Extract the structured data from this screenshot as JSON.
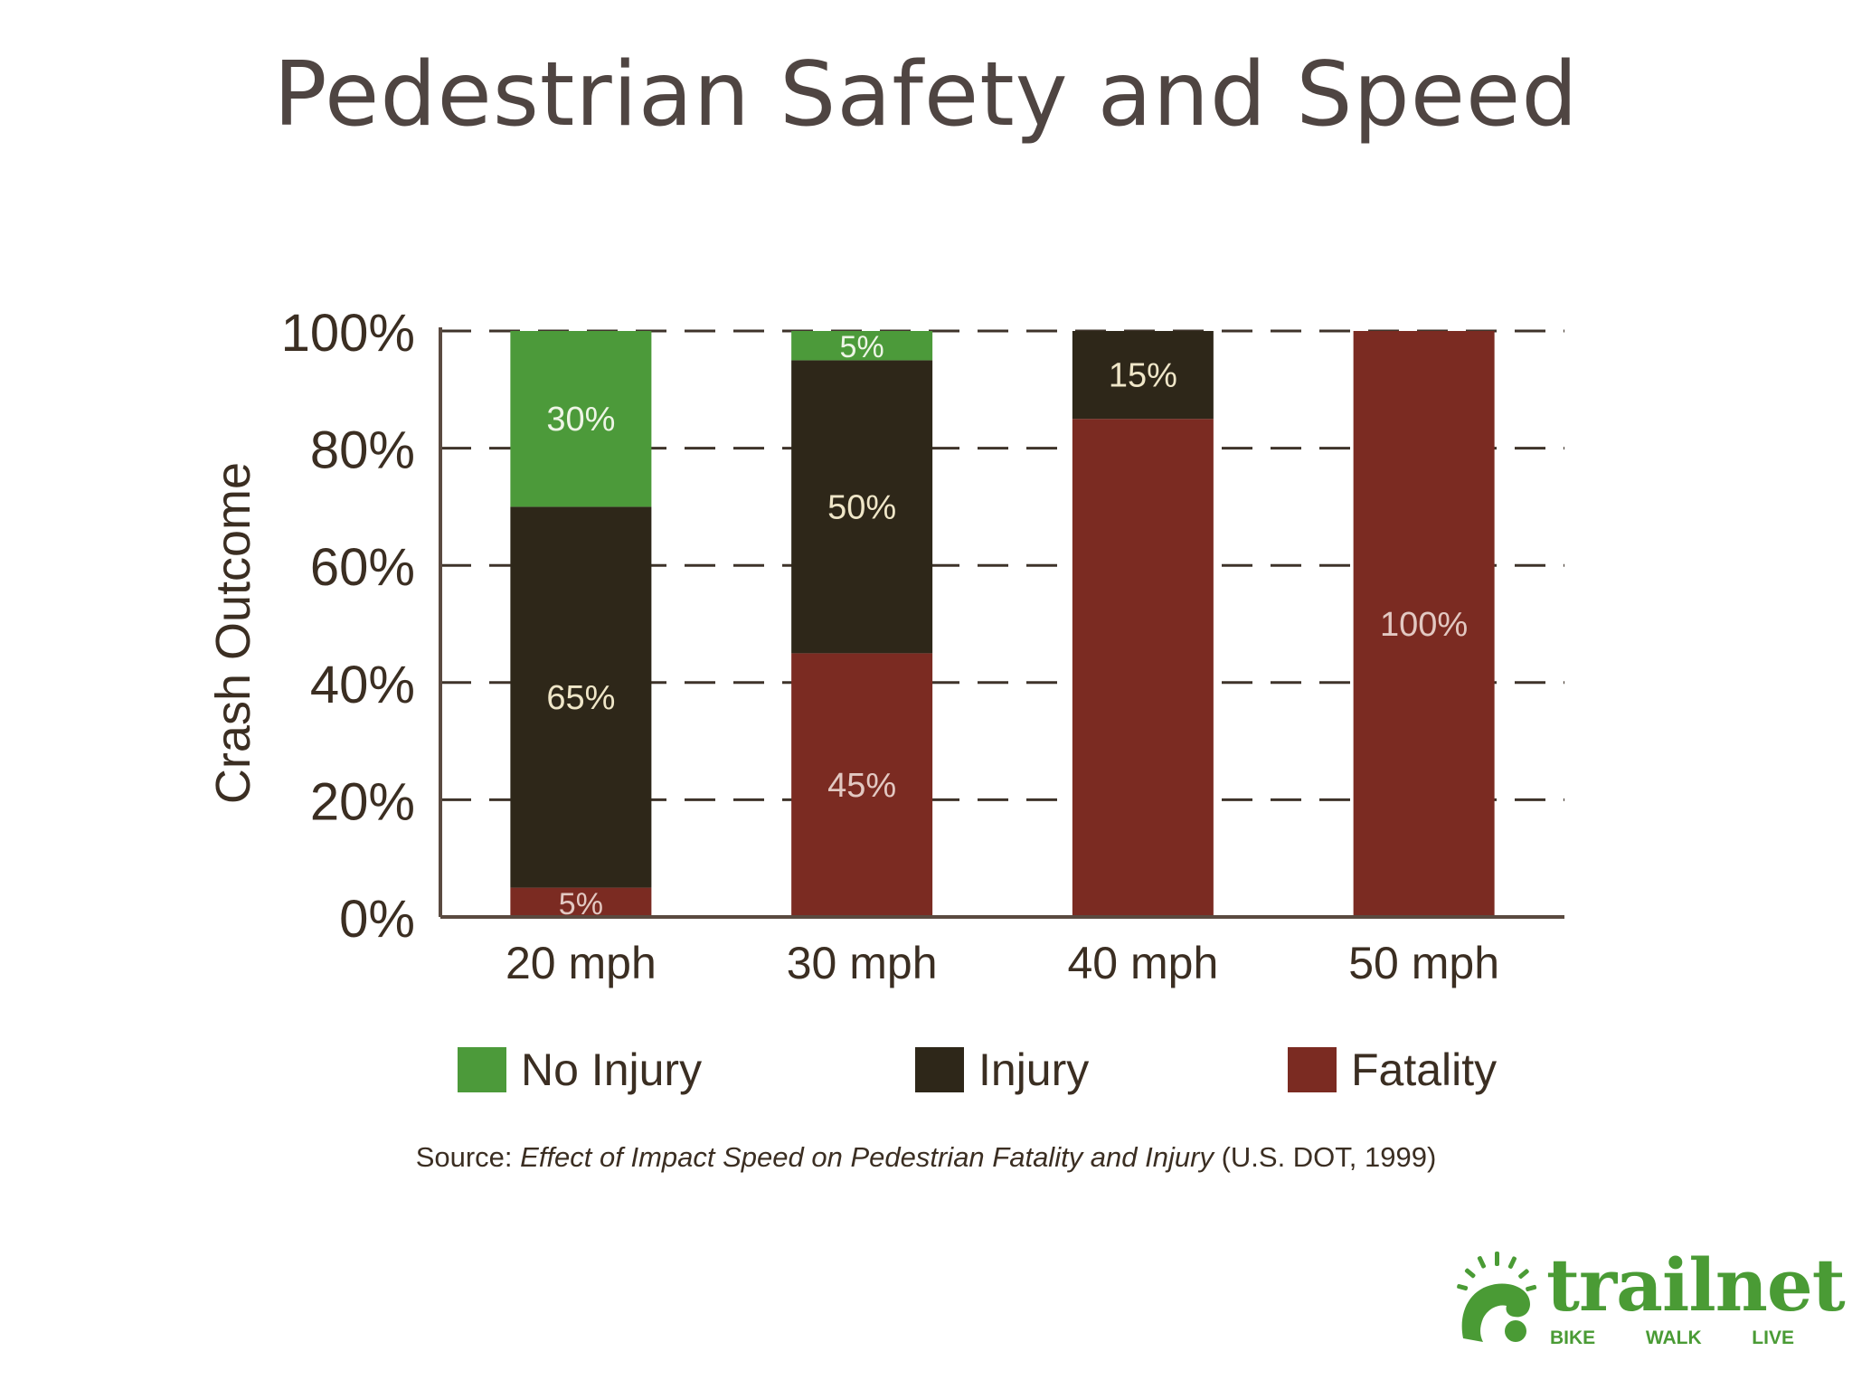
{
  "slide": {
    "title": "Pedestrian Safety and Speed"
  },
  "colors": {
    "no_injury": "#4c9a3a",
    "injury": "#2e2719",
    "fatality": "#7b2b22",
    "axis_text": "#3b2e22",
    "logo_green": "#4a9b35"
  },
  "chart_data": {
    "type": "bar",
    "stacked": true,
    "categories": [
      "20 mph",
      "30 mph",
      "40 mph",
      "50 mph"
    ],
    "series": [
      {
        "name": "Fatality",
        "values": [
          5,
          45,
          85,
          100
        ],
        "labels": [
          "5%",
          "45%",
          "",
          "100%"
        ]
      },
      {
        "name": "Injury",
        "values": [
          65,
          50,
          15,
          0
        ],
        "labels": [
          "65%",
          "50%",
          "15%",
          ""
        ]
      },
      {
        "name": "No Injury",
        "values": [
          30,
          5,
          0,
          0
        ],
        "labels": [
          "30%",
          "5%",
          "",
          ""
        ]
      }
    ],
    "ylabel": "Crash Outcome",
    "yticks": [
      "0%",
      "20%",
      "40%",
      "60%",
      "80%",
      "100%"
    ],
    "ylim": [
      0,
      100
    ],
    "grid": true,
    "legend": [
      "No Injury",
      "Injury",
      "Fatality"
    ],
    "legend_position": "bottom"
  },
  "source": {
    "prefix": "Source: ",
    "title": "Effect of Impact Speed on Pedestrian Fatality and Injury",
    "suffix": " (U.S. DOT, 1999)"
  },
  "logo": {
    "name": "trailnet",
    "tagline": [
      "BIKE",
      "WALK",
      "LIVE"
    ]
  }
}
